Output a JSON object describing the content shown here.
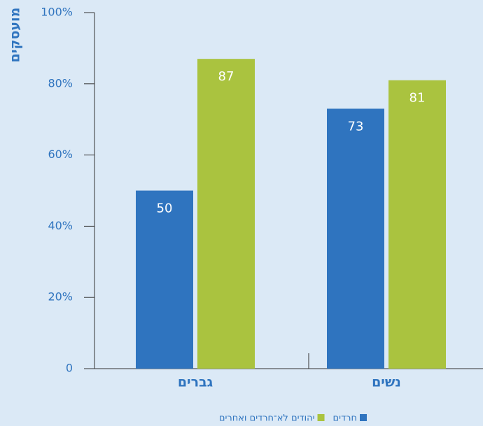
{
  "chart_data": {
    "type": "bar",
    "y_label": "מועסקים",
    "categories": [
      "גברים",
      "נשים"
    ],
    "series": [
      {
        "name": "חרדים",
        "color": "#2f74bf",
        "values": [
          50,
          73
        ]
      },
      {
        "name": "יהודים לא־חרדים ואחרים",
        "color": "#aac33f",
        "values": [
          87,
          81
        ]
      }
    ],
    "ylim": [
      0,
      100
    ],
    "yticks": [
      0,
      {
        "value": 20,
        "label": "20%"
      },
      {
        "value": 40,
        "label": "40%"
      },
      {
        "value": 60,
        "label": "60%"
      },
      {
        "value": 80,
        "label": "80%"
      },
      {
        "value": 100,
        "label": "100%"
      }
    ]
  }
}
